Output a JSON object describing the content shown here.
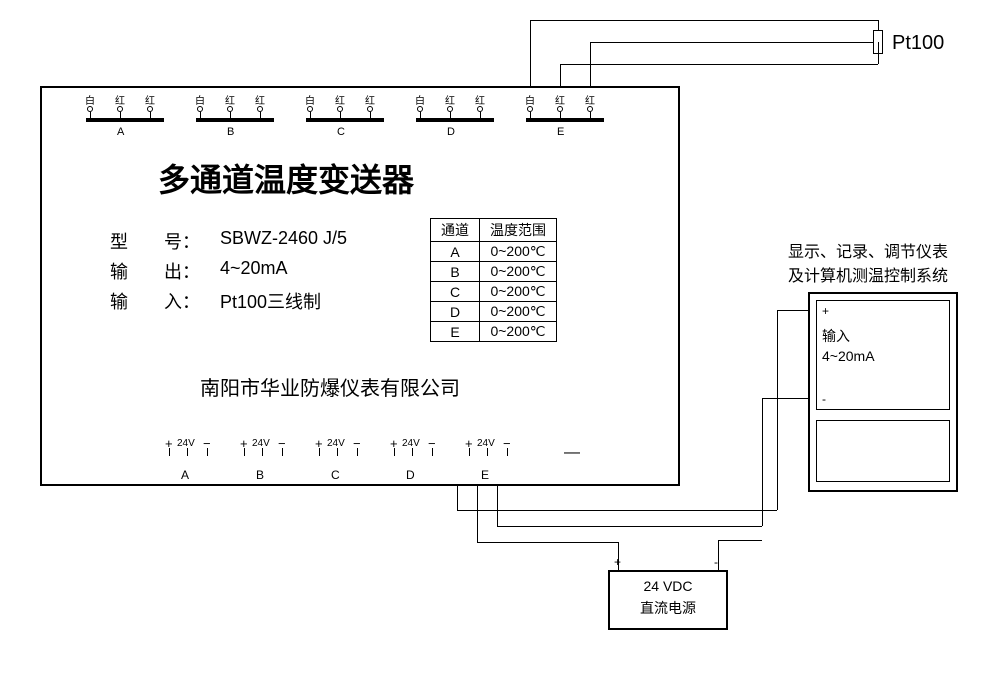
{
  "sensor_label": "Pt100",
  "main_box": {
    "title": "多通道温度变送器",
    "spec": {
      "model_label": "型　　号：",
      "model_value": "SBWZ-2460 J/5",
      "output_label": "输　　出：",
      "output_value": "4~20mA",
      "input_label": "输　　入：",
      "input_value": "Pt100三线制"
    },
    "company": "南阳市华业防爆仪表有限公司",
    "table": {
      "col1": "通道",
      "col2": "温度范围",
      "rows": [
        {
          "ch": "A",
          "range": "0~200℃"
        },
        {
          "ch": "B",
          "range": "0~200℃"
        },
        {
          "ch": "C",
          "range": "0~200℃"
        },
        {
          "ch": "D",
          "range": "0~200℃"
        },
        {
          "ch": "E",
          "range": "0~200℃"
        }
      ]
    },
    "top_terminals": {
      "pin_labels": [
        "白",
        "红",
        "红"
      ],
      "channels": [
        "A",
        "B",
        "C",
        "D",
        "E"
      ]
    },
    "bottom_terminals": {
      "plus": "+",
      "minus": "−",
      "volt": "24V",
      "channels": [
        "A",
        "B",
        "C",
        "D",
        "E"
      ],
      "extra_dash": "—"
    }
  },
  "psu": {
    "line1": "24 VDC",
    "line2": "直流电源",
    "plus": "+",
    "minus": "-"
  },
  "display_box": {
    "caption1": "显示、记录、调节仪表",
    "caption2": "及计算机测温控制系统",
    "plus": "+",
    "input_label": "输入",
    "range": "4~20mA",
    "minus": "-"
  },
  "colors": {
    "line": "#000000",
    "bg": "#ffffff"
  }
}
